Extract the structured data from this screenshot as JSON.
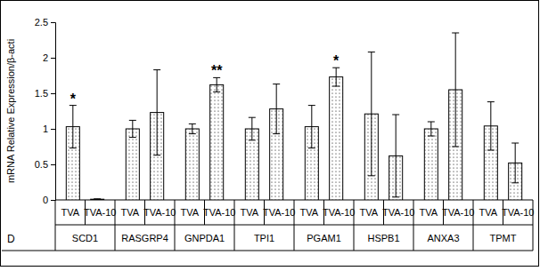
{
  "chart_data": {
    "type": "bar",
    "panel_label": "D",
    "y_label": "mRNA Relative Expression/β-acti",
    "categories": [
      "SCD1",
      "RASGRP4",
      "GNPDA1",
      "TPI1",
      "PGAM1",
      "HSPB1",
      "ANXA3",
      "TPMT"
    ],
    "series": [
      {
        "name": "TVA",
        "color": "#000000",
        "values": [
          1.03,
          1.0,
          1.0,
          1.0,
          1.03,
          1.21,
          1.0,
          1.04
        ],
        "errors": [
          0.3,
          0.12,
          0.07,
          0.16,
          0.3,
          0.87,
          0.1,
          0.34
        ]
      },
      {
        "name": "TVA-10",
        "color": "#000000",
        "values": [
          0.01,
          1.23,
          1.62,
          1.28,
          1.73,
          0.62,
          1.55,
          0.52
        ],
        "errors": [
          0.005,
          0.6,
          0.1,
          0.35,
          0.13,
          0.58,
          0.8,
          0.28
        ]
      }
    ],
    "annotations": [
      {
        "text": "*",
        "category": "SCD1",
        "series": "TVA"
      },
      {
        "text": "**",
        "category": "GNPDA1",
        "series": "TVA-10"
      },
      {
        "text": "*",
        "category": "PGAM1",
        "series": "TVA-10"
      }
    ],
    "ylim": [
      0,
      2.5
    ],
    "yticks": [
      0,
      0.5,
      1,
      1.5,
      2,
      2.5
    ],
    "grid": false
  }
}
